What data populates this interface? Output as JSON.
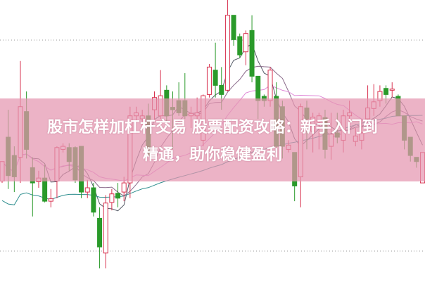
{
  "article": {
    "title_line1": "股市怎样加杠杆交易 股票配资攻略：新手入门到",
    "title_line2": "精通，助你稳健盈利"
  },
  "colors": {
    "up": "#d8314f",
    "down": "#2a9a2a",
    "banner": "#e496b0",
    "ma_short": "#555a66",
    "ma_mid": "#8a6a8a",
    "ma_pink": "#e08ad8",
    "ma_long": "#2f8f8f"
  },
  "chart_data": {
    "type": "candlestick",
    "grid": "dotted horizontal",
    "moving_averages": true,
    "candles": [
      [
        135,
        100,
        103,
        135
      ],
      [
        220,
        90,
        175,
        112
      ],
      [
        160,
        85,
        145,
        110
      ],
      [
        300,
        100,
        142,
        225
      ],
      [
        250,
        140,
        217,
        155
      ],
      [
        142,
        45,
        125,
        100
      ],
      [
        120,
        92,
        102,
        108
      ],
      [
        130,
        68,
        108,
        70
      ],
      [
        90,
        60,
        70,
        74
      ],
      [
        160,
        75,
        103,
        158
      ],
      [
        165,
        150,
        155,
        160
      ],
      [
        165,
        120,
        158,
        135
      ],
      [
        160,
        100,
        158,
        105
      ],
      [
        160,
        75,
        160,
        85
      ],
      [
        105,
        75,
        85,
        92
      ],
      [
        100,
        45,
        92,
        52
      ],
      [
        60,
        -40,
        42,
        -5
      ],
      [
        80,
        -40,
        -15,
        67
      ],
      [
        90,
        55,
        68,
        82
      ],
      [
        100,
        60,
        83,
        75
      ],
      [
        110,
        70,
        85,
        100
      ],
      [
        225,
        75,
        100,
        210
      ],
      [
        225,
        200,
        210,
        215
      ],
      [
        220,
        190,
        205,
        210
      ],
      [
        230,
        145,
        210,
        145
      ],
      [
        250,
        200,
        220,
        240
      ],
      [
        285,
        205,
        210,
        243
      ],
      [
        260,
        200,
        252,
        210
      ],
      [
        250,
        155,
        224,
        220
      ],
      [
        265,
        210,
        235,
        215
      ],
      [
        280,
        205,
        235,
        210
      ],
      [
        225,
        190,
        210,
        214
      ],
      [
        240,
        180,
        210,
        215
      ],
      [
        245,
        160,
        170,
        243
      ],
      [
        295,
        240,
        245,
        290
      ],
      [
        330,
        240,
        285,
        260
      ],
      [
        290,
        220,
        260,
        245
      ],
      [
        400,
        250,
        252,
        375
      ],
      [
        375,
        325,
        375,
        335
      ],
      [
        345,
        305,
        340,
        310
      ],
      [
        350,
        293,
        315,
        345
      ],
      [
        375,
        265,
        350,
        275
      ],
      [
        275,
        205,
        275,
        235
      ],
      [
        245,
        225,
        242,
        235
      ],
      [
        290,
        225,
        235,
        285
      ],
      [
        265,
        145,
        242,
        160
      ],
      [
        235,
        140,
        225,
        160
      ],
      [
        170,
        150,
        155,
        162
      ],
      [
        150,
        70,
        150,
        95
      ],
      [
        230,
        60,
        110,
        225
      ],
      [
        235,
        155,
        223,
        205
      ],
      [
        215,
        150,
        185,
        208
      ],
      [
        215,
        155,
        200,
        210
      ],
      [
        220,
        140,
        207,
        155
      ],
      [
        215,
        138,
        160,
        180
      ],
      [
        215,
        165,
        182,
        175
      ],
      [
        220,
        150,
        170,
        210
      ],
      [
        235,
        185,
        210,
        215
      ],
      [
        190,
        160,
        168,
        177
      ],
      [
        205,
        155,
        170,
        182
      ],
      [
        260,
        200,
        205,
        223
      ],
      [
        262,
        210,
        222,
        233
      ],
      [
        260,
        225,
        235,
        250
      ],
      [
        260,
        230,
        255,
        245
      ],
      [
        265,
        240,
        252,
        254
      ],
      [
        245,
        210,
        242,
        210
      ],
      [
        210,
        155,
        210,
        170
      ],
      [
        175,
        135,
        175,
        145
      ],
      [
        142,
        125,
        142,
        135
      ],
      [
        150,
        100,
        100,
        150
      ]
    ]
  }
}
